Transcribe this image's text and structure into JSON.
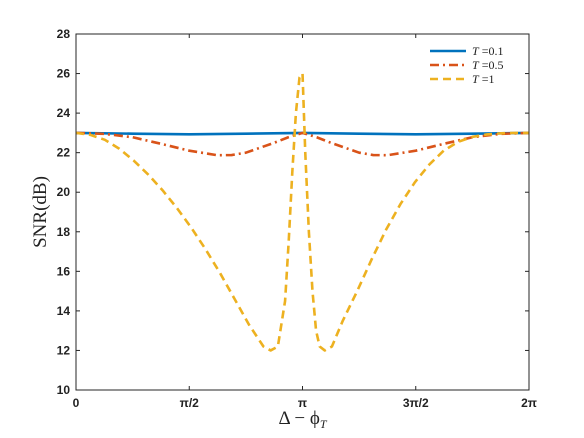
{
  "chart_data": {
    "type": "line",
    "title": "",
    "xlabel": "Δ − ϕ",
    "xlabel_sub": "T",
    "ylabel": "SNR(dB)",
    "xlim": [
      0,
      6.2832
    ],
    "ylim": [
      10,
      28
    ],
    "xticks": [
      0,
      1.5708,
      3.1416,
      4.7124,
      6.2832
    ],
    "xtick_labels": [
      "0",
      "π/2",
      "π",
      "3π/2",
      "2π"
    ],
    "yticks": [
      10,
      12,
      14,
      16,
      18,
      20,
      22,
      24,
      26,
      28
    ],
    "ytick_labels": [
      "10",
      "12",
      "14",
      "16",
      "18",
      "20",
      "22",
      "24",
      "26",
      "28"
    ],
    "grid": false,
    "legend_position": "top-right",
    "series": [
      {
        "name": "T =0.1",
        "legend_var": "T",
        "legend_val": " =0.1",
        "color": "#0072BD",
        "style": "solid",
        "x": [
          0,
          0.785,
          1.571,
          2.356,
          3.142,
          3.927,
          4.712,
          5.498,
          6.283
        ],
        "y": [
          23.0,
          22.96,
          22.93,
          22.96,
          23.0,
          22.96,
          22.93,
          22.96,
          23.0
        ]
      },
      {
        "name": "T =0.5",
        "legend_var": "T",
        "legend_val": " =0.5",
        "color": "#D95319",
        "style": "dashdot",
        "x": [
          0,
          0.393,
          0.785,
          1.178,
          1.571,
          1.963,
          2.159,
          2.356,
          2.553,
          2.749,
          2.945,
          3.142,
          3.338,
          3.534,
          3.731,
          3.927,
          4.123,
          4.32,
          4.712,
          5.105,
          5.498,
          5.89,
          6.283
        ],
        "y": [
          23.0,
          22.95,
          22.78,
          22.45,
          22.1,
          21.87,
          21.88,
          22.0,
          22.25,
          22.5,
          22.78,
          23.0,
          22.78,
          22.5,
          22.25,
          22.0,
          21.88,
          21.87,
          22.1,
          22.45,
          22.78,
          22.95,
          23.0
        ]
      },
      {
        "name": "T =1",
        "legend_var": "T",
        "legend_val": " =1",
        "color": "#EDB120",
        "style": "dashed",
        "x": [
          0,
          0.2,
          0.4,
          0.6,
          0.8,
          1.0,
          1.2,
          1.4,
          1.6,
          1.8,
          2.0,
          2.2,
          2.4,
          2.6,
          2.7,
          2.8,
          2.9,
          2.95,
          3.0,
          3.05,
          3.1,
          3.142,
          3.18,
          3.23,
          3.28,
          3.33,
          3.38,
          3.45,
          3.55,
          3.7,
          3.9,
          4.1,
          4.3,
          4.5,
          4.7,
          4.9,
          5.1,
          5.3,
          5.5,
          5.7,
          5.9,
          6.1,
          6.283
        ],
        "y": [
          23.0,
          22.9,
          22.65,
          22.2,
          21.6,
          20.9,
          20.1,
          19.2,
          18.2,
          17.1,
          15.9,
          14.6,
          13.3,
          12.2,
          12.0,
          12.2,
          14.5,
          17.5,
          21.0,
          24.0,
          25.8,
          26.0,
          22.0,
          18.0,
          15.0,
          13.0,
          12.2,
          12.0,
          12.2,
          13.5,
          15.0,
          16.6,
          18.1,
          19.4,
          20.5,
          21.4,
          22.1,
          22.55,
          22.8,
          22.92,
          22.98,
          23.0,
          23.0
        ]
      }
    ]
  }
}
